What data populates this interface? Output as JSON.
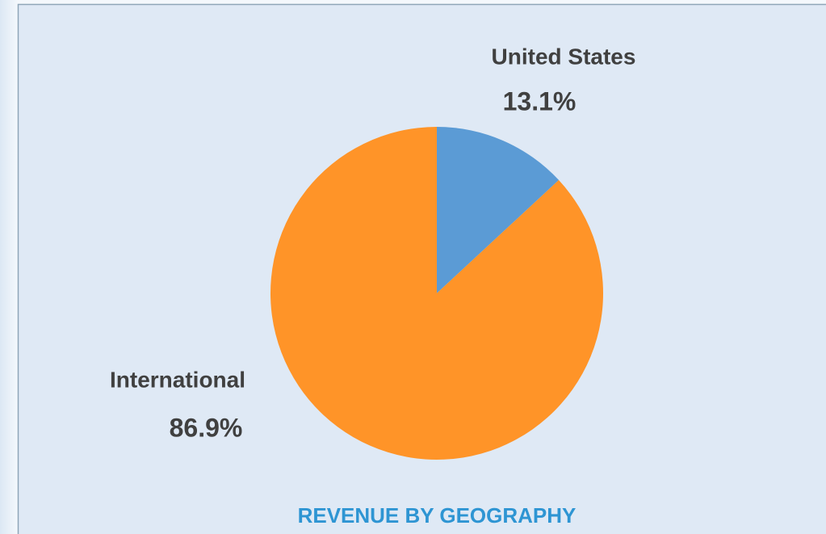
{
  "chart_data": {
    "type": "pie",
    "title": "REVENUE BY GEOGRAPHY",
    "categories": [
      "United States",
      "International"
    ],
    "values": [
      13.1,
      86.9
    ],
    "value_labels": [
      "13.1%",
      "86.9%"
    ],
    "colors": [
      "#5b9bd5",
      "#ff9428"
    ]
  }
}
